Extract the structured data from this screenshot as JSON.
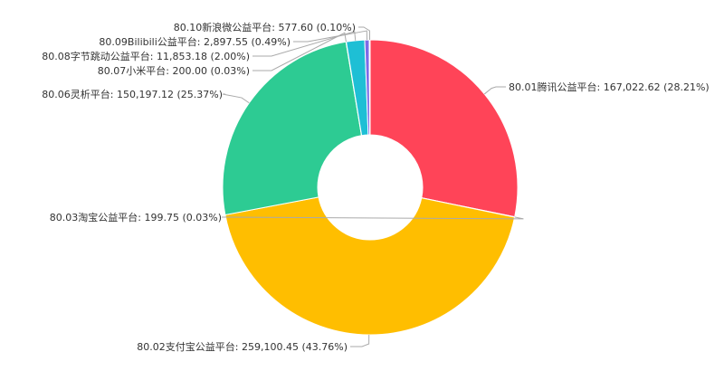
{
  "chart_data": {
    "type": "pie",
    "donut": true,
    "title": "",
    "slices": [
      {
        "name": "80.01腾讯公益平台",
        "value": 167022.62,
        "percent": "28.21%",
        "value_label": "167,022.62",
        "color": "#FF4458"
      },
      {
        "name": "80.03淘宝公益平台",
        "value": 199.75,
        "percent": "0.03%",
        "value_label": "199.75",
        "color": "#FF8A33"
      },
      {
        "name": "80.02支付宝公益平台",
        "value": 259100.45,
        "percent": "43.76%",
        "value_label": "259,100.45",
        "color": "#FFBE00"
      },
      {
        "name": "80.06灵析平台",
        "value": 150197.12,
        "percent": "25.37%",
        "value_label": "150,197.12",
        "color": "#2DCB93"
      },
      {
        "name": "80.07小米平台",
        "value": 200.0,
        "percent": "0.03%",
        "value_label": "200.00",
        "color": "#5AA7F0"
      },
      {
        "name": "80.08字节跳动公益平台",
        "value": 11853.18,
        "percent": "2.00%",
        "value_label": "11,853.18",
        "color": "#1EBFD5"
      },
      {
        "name": "80.09Bilibili公益平台",
        "value": 2897.55,
        "percent": "0.49%",
        "value_label": "2,897.55",
        "color": "#7D6BE8"
      },
      {
        "name": "80.10新浪微公益平台",
        "value": 577.6,
        "percent": "0.10%",
        "value_label": "577.60",
        "color": "#F06A5A"
      }
    ]
  }
}
